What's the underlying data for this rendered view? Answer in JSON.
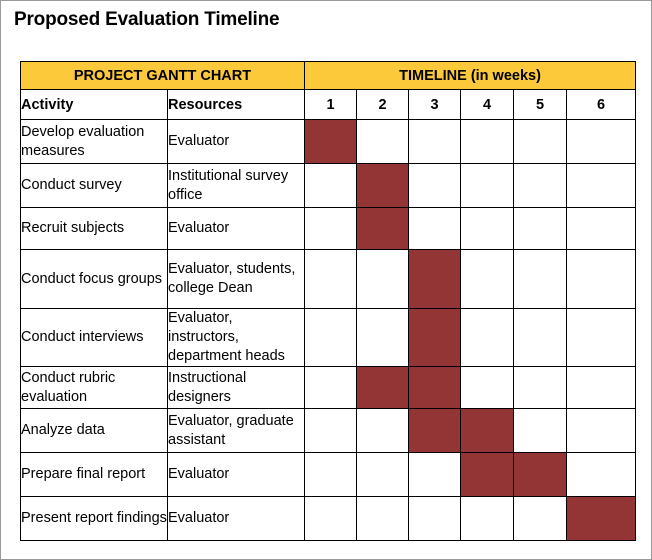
{
  "page_title": "Proposed Evaluation Timeline",
  "table": {
    "band_left": "PROJECT GANTT CHART",
    "band_right": "TIMELINE (in weeks)",
    "col_activity": "Activity",
    "col_resources": "Resources",
    "weeks": [
      "1",
      "2",
      "3",
      "4",
      "5",
      "6"
    ],
    "bar_color": "#933535",
    "header_color": "#fcc93a",
    "rows": [
      {
        "activity": "Develop evaluation measures",
        "resources": "Evaluator",
        "active_weeks": [
          1
        ]
      },
      {
        "activity": "Conduct survey",
        "resources": "Institutional survey office",
        "active_weeks": [
          2
        ]
      },
      {
        "activity": "Recruit subjects",
        "resources": "Evaluator",
        "active_weeks": [
          2
        ]
      },
      {
        "activity": "Conduct focus groups",
        "resources": "Evaluator, students, college Dean",
        "active_weeks": [
          3
        ]
      },
      {
        "activity": "Conduct interviews",
        "resources": "Evaluator, instructors, department heads",
        "active_weeks": [
          3
        ]
      },
      {
        "activity": "Conduct rubric evaluation",
        "resources": "Instructional designers",
        "active_weeks": [
          2,
          3
        ]
      },
      {
        "activity": "Analyze data",
        "resources": "Evaluator, graduate assistant",
        "active_weeks": [
          3,
          4
        ]
      },
      {
        "activity": "Prepare final report",
        "resources": "Evaluator",
        "active_weeks": [
          4,
          5
        ]
      },
      {
        "activity": "Present report findings",
        "resources": "Evaluator",
        "active_weeks": [
          6
        ]
      }
    ]
  }
}
